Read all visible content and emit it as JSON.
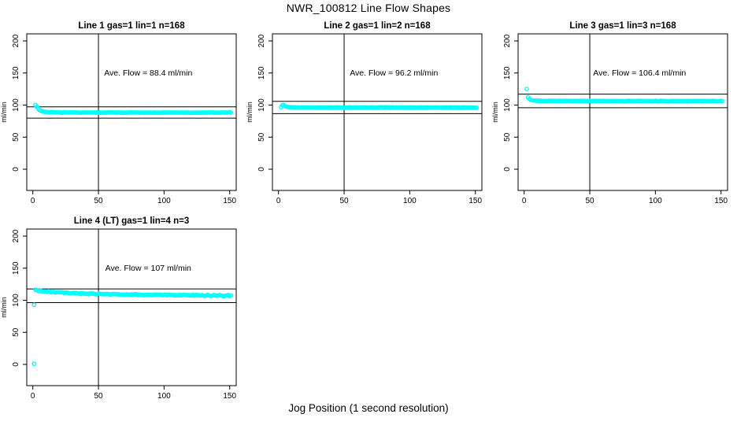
{
  "page": {
    "background": "#ffffff"
  },
  "chart_data": {
    "type": "scatter",
    "title": "NWR_100812  Line Flow Shapes",
    "xlabel": "Jog Position (1 second resolution)",
    "ylabel": "ml/min",
    "xlim": [
      0,
      150
    ],
    "ylim": [
      0,
      200
    ],
    "x_ticks": [
      0,
      50,
      100,
      150
    ],
    "y_ticks": [
      0,
      50,
      100,
      150,
      200
    ],
    "grid": false,
    "legend": "none",
    "point_color": "#00ffff",
    "line_color": "#000000",
    "panels": [
      {
        "id": "line-1",
        "title": "Line 1 gas=1 lin=1 n=168",
        "annotation": "Ave. Flow =  88.4  ml/min",
        "ave_flow": 88.4,
        "n": 168,
        "vline_x": 50,
        "hlines": [
          97.2,
          79.6
        ],
        "anchors": [
          [
            2,
            100
          ],
          [
            3,
            97.5
          ],
          [
            4,
            94.5
          ],
          [
            5,
            92.5
          ],
          [
            6,
            91.3
          ],
          [
            8,
            90
          ],
          [
            12,
            89
          ],
          [
            20,
            88.5
          ],
          [
            60,
            88.3
          ],
          [
            151,
            88.3
          ]
        ],
        "outliers": [],
        "noise": 0.7
      },
      {
        "id": "line-2",
        "title": "Line 2 gas=1 lin=2 n=168",
        "annotation": "Ave. Flow =  96.2  ml/min",
        "ave_flow": 96.2,
        "n": 168,
        "vline_x": 50,
        "hlines": [
          105.8,
          86.6
        ],
        "anchors": [
          [
            2,
            96.5
          ],
          [
            3,
            99.5
          ],
          [
            4,
            100
          ],
          [
            5,
            98.3
          ],
          [
            6,
            97.2
          ],
          [
            8,
            96.6
          ],
          [
            15,
            96.3
          ],
          [
            60,
            96.1
          ],
          [
            151,
            96
          ]
        ],
        "outliers": [],
        "noise": 0.6
      },
      {
        "id": "line-3",
        "title": "Line 3 gas=1 lin=3 n=168",
        "annotation": "Ave. Flow =  106.4  ml/min",
        "ave_flow": 106.4,
        "n": 168,
        "vline_x": 50,
        "hlines": [
          117.0,
          95.8
        ],
        "anchors": [
          [
            3,
            112
          ],
          [
            4,
            109.5
          ],
          [
            5,
            108
          ],
          [
            7,
            107
          ],
          [
            12,
            106.6
          ],
          [
            60,
            106.4
          ],
          [
            151,
            106.3
          ]
        ],
        "outliers": [
          [
            2,
            125
          ]
        ],
        "noise": 0.6
      },
      {
        "id": "line-4",
        "title": "Line 4 (LT) gas=1 lin=4 n=3",
        "annotation": "Ave. Flow =  107  ml/min",
        "ave_flow": 107,
        "n": 3,
        "vline_x": 50,
        "hlines": [
          117.7,
          96.3
        ],
        "anchors": [
          [
            2,
            116
          ],
          [
            4,
            115.3
          ],
          [
            8,
            114
          ],
          [
            15,
            112.8
          ],
          [
            25,
            111.5
          ],
          [
            40,
            110.3
          ],
          [
            60,
            109.3
          ],
          [
            85,
            108.5
          ],
          [
            110,
            108
          ],
          [
            130,
            107.7
          ],
          [
            151,
            107.2
          ]
        ],
        "outliers": [
          [
            1,
            93
          ],
          [
            1,
            1
          ]
        ],
        "noise": 1.5
      }
    ]
  }
}
